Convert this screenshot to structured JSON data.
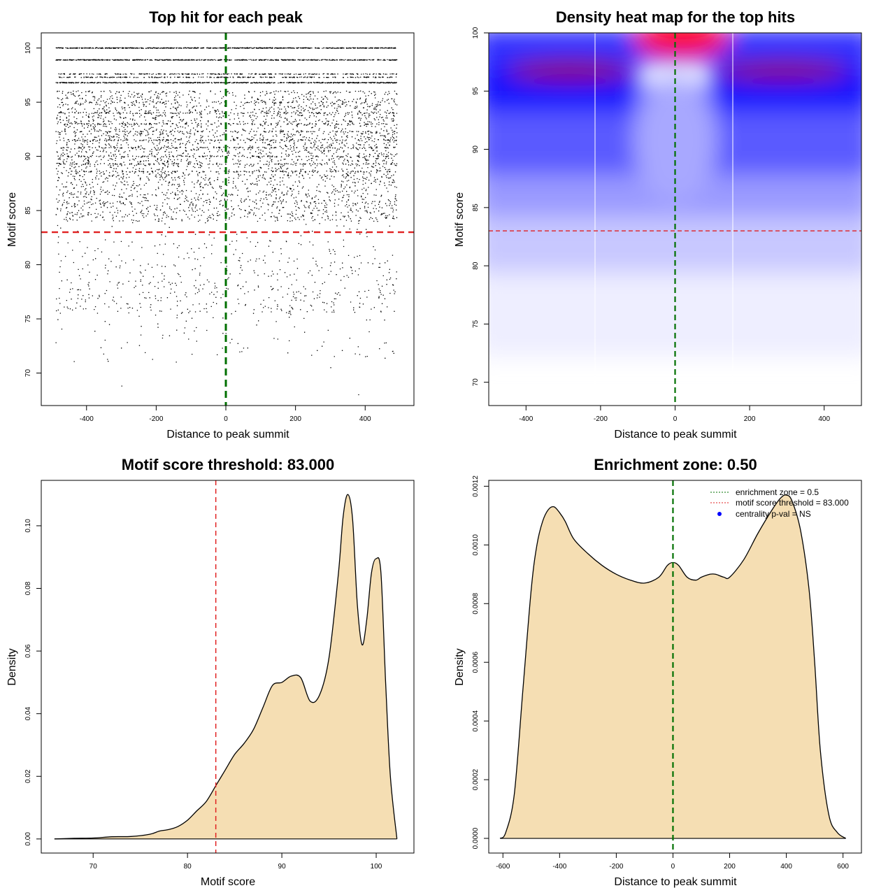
{
  "chart_data": [
    {
      "type": "scatter",
      "title": "Top hit for each peak",
      "xlabel": "Distance to peak summit",
      "ylabel": "Motif score",
      "xlim": [
        -530,
        540
      ],
      "ylim": [
        67,
        101.4
      ],
      "xticks": [
        -400,
        -200,
        0,
        200,
        400
      ],
      "yticks": [
        70,
        75,
        80,
        85,
        90,
        95,
        100
      ],
      "x_range_points": [
        -490,
        490
      ],
      "dense_score_levels": [
        100,
        98.9,
        97.6,
        97.3,
        96.8
      ],
      "approx_peak_count": 6000,
      "score_threshold": 83,
      "summit_line": 0,
      "colors": {
        "points": "#000000",
        "threshold": "#e02020",
        "summit": "#007000"
      }
    },
    {
      "type": "heatmap",
      "title": "Density heat map for the top hits",
      "xlabel": "Distance to peak summit",
      "ylabel": "Motif score",
      "xlim": [
        -500,
        500
      ],
      "ylim": [
        68,
        100
      ],
      "xticks": [
        -400,
        -200,
        0,
        200,
        400
      ],
      "yticks": [
        70,
        75,
        80,
        85,
        90,
        95,
        100
      ],
      "high_density_regions": [
        {
          "x": 0,
          "y": 99.8,
          "level": "highest"
        },
        {
          "x": -350,
          "y": 96.8,
          "level": "high"
        },
        {
          "x": 330,
          "y": 96.8,
          "level": "high"
        }
      ],
      "score_threshold": 83,
      "summit_line": 0,
      "colors": {
        "low": "#ffffff",
        "mid": "#0000ff",
        "high": "#ff0000",
        "threshold": "#e02020",
        "summit": "#007000"
      }
    },
    {
      "type": "area",
      "title": "Motif score threshold: 83.000",
      "xlabel": "Motif score",
      "ylabel": "Density",
      "xlim": [
        64.5,
        104
      ],
      "ylim": [
        -0.0045,
        0.1145
      ],
      "xticks": [
        70,
        80,
        90,
        100
      ],
      "yticks": [
        0,
        0.02,
        0.04,
        0.06,
        0.08,
        0.1
      ],
      "ytick_labels": [
        "0.00",
        "0.02",
        "0.04",
        "0.06",
        "0.08",
        "0.10"
      ],
      "x": [
        65.9,
        68,
        70,
        72,
        74,
        76,
        77,
        78,
        79,
        80,
        81,
        82,
        83,
        84,
        85,
        86,
        87,
        88,
        89,
        90,
        91,
        92,
        93,
        94,
        95,
        96,
        96.5,
        97,
        97.5,
        98,
        98.5,
        99,
        99.5,
        100,
        100.5,
        101,
        101.5,
        102.2
      ],
      "y": [
        0,
        0.0002,
        0.0003,
        0.0007,
        0.0008,
        0.0015,
        0.0025,
        0.003,
        0.004,
        0.006,
        0.009,
        0.012,
        0.017,
        0.022,
        0.027,
        0.0305,
        0.035,
        0.042,
        0.049,
        0.05,
        0.052,
        0.0515,
        0.044,
        0.046,
        0.058,
        0.085,
        0.103,
        0.11,
        0.102,
        0.075,
        0.062,
        0.07,
        0.085,
        0.0895,
        0.085,
        0.05,
        0.02,
        0
      ],
      "vline": 83,
      "colors": {
        "fill": "#f5deb3",
        "line": "#000000",
        "vline": "#e02020"
      }
    },
    {
      "type": "area",
      "title": "Enrichment zone: 0.50",
      "xlabel": "Distance to peak summit",
      "ylabel": "Density",
      "xlim": [
        -650,
        665
      ],
      "ylim": [
        -5e-05,
        0.00122
      ],
      "xticks": [
        -600,
        -400,
        -200,
        0,
        200,
        400,
        600
      ],
      "yticks": [
        0,
        0.0002,
        0.0004,
        0.0006,
        0.0008,
        0.001,
        0.0012
      ],
      "ytick_labels": [
        "0.0000",
        "0.0002",
        "0.0004",
        "0.0006",
        "0.0008",
        "0.0010",
        "0.0012"
      ],
      "x": [
        -610,
        -590,
        -560,
        -530,
        -500,
        -480,
        -460,
        -440,
        -420,
        -400,
        -380,
        -350,
        -300,
        -250,
        -200,
        -150,
        -100,
        -50,
        -20,
        0,
        20,
        50,
        80,
        100,
        130,
        150,
        180,
        200,
        250,
        300,
        350,
        380,
        400,
        420,
        450,
        480,
        500,
        520,
        550,
        580,
        610
      ],
      "y": [
        0,
        2e-05,
        0.00015,
        0.0005,
        0.00085,
        0.001,
        0.00108,
        0.00112,
        0.00113,
        0.00111,
        0.00108,
        0.00102,
        0.00097,
        0.00093,
        0.0009,
        0.00088,
        0.00087,
        0.00089,
        0.00093,
        0.00094,
        0.00093,
        0.00089,
        0.00088,
        0.00089,
        0.0009,
        0.0009,
        0.00089,
        0.00089,
        0.00095,
        0.00104,
        0.00112,
        0.00116,
        0.00117,
        0.00115,
        0.00105,
        0.00085,
        0.0006,
        0.0003,
        8e-05,
        2e-05,
        0
      ],
      "vline": 0,
      "legend": {
        "position": "top-right",
        "entries": [
          {
            "label": "enrichment zone = 0.5",
            "color": "#007000",
            "marker": "dotted-line"
          },
          {
            "label": "motif score threshold = 83.000",
            "color": "#e02020",
            "marker": "dotted-line"
          },
          {
            "label": "centrality p-val = NS",
            "color": "#0000ff",
            "marker": "point"
          }
        ]
      },
      "colors": {
        "fill": "#f5deb3",
        "line": "#000000",
        "vline": "#007000"
      }
    }
  ]
}
